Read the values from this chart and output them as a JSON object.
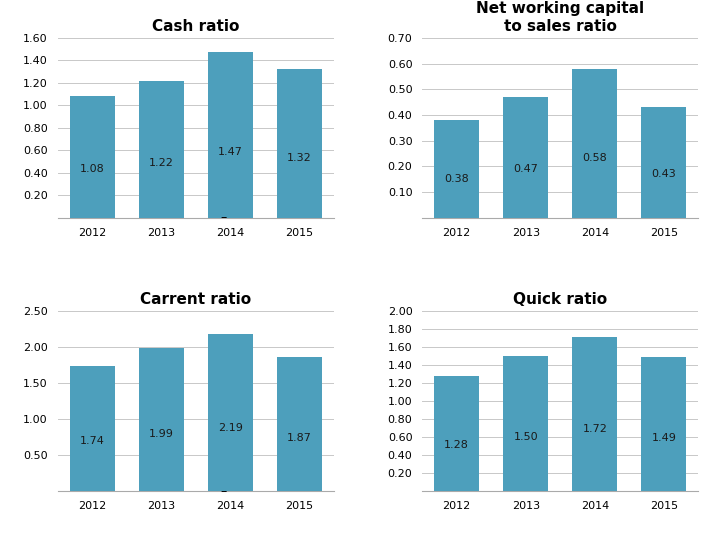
{
  "charts": [
    {
      "title": "Cash ratio",
      "row": 0,
      "col": 0,
      "years": [
        "2012",
        "2013",
        "2014",
        "2015"
      ],
      "values": [
        1.08,
        1.22,
        1.47,
        1.32
      ],
      "ylim": [
        0,
        1.6
      ],
      "yticks": [
        0.2,
        0.4,
        0.6,
        0.8,
        1.0,
        1.2,
        1.4,
        1.6
      ],
      "ytick_labels": [
        "0.20",
        "0.40",
        "0.60",
        "0.80",
        "1.00",
        "1.20",
        "1.40",
        "1.60"
      ]
    },
    {
      "title": "Net working capital\nto sales ratio",
      "row": 0,
      "col": 1,
      "years": [
        "2012",
        "2013",
        "2014",
        "2015"
      ],
      "values": [
        0.38,
        0.47,
        0.58,
        0.43
      ],
      "ylim": [
        0,
        0.7
      ],
      "yticks": [
        0.1,
        0.2,
        0.3,
        0.4,
        0.5,
        0.6,
        0.7
      ],
      "ytick_labels": [
        "0.10",
        "0.20",
        "0.30",
        "0.40",
        "0.50",
        "0.60",
        "0.70"
      ]
    },
    {
      "title": "Carrent ratio",
      "row": 1,
      "col": 0,
      "years": [
        "2012",
        "2013",
        "2014",
        "2015"
      ],
      "values": [
        1.74,
        1.99,
        2.19,
        1.87
      ],
      "ylim": [
        0,
        2.5
      ],
      "yticks": [
        0.5,
        1.0,
        1.5,
        2.0,
        2.5
      ],
      "ytick_labels": [
        "0.50",
        "1.00",
        "1.50",
        "2.00",
        "2.50"
      ]
    },
    {
      "title": "Quick ratio",
      "row": 1,
      "col": 1,
      "years": [
        "2012",
        "2013",
        "2014",
        "2015"
      ],
      "values": [
        1.28,
        1.5,
        1.72,
        1.49
      ],
      "ylim": [
        0,
        2.0
      ],
      "yticks": [
        0.2,
        0.4,
        0.6,
        0.8,
        1.0,
        1.2,
        1.4,
        1.6,
        1.8,
        2.0
      ],
      "ytick_labels": [
        "0.20",
        "0.40",
        "0.60",
        "0.80",
        "1.00",
        "1.20",
        "1.40",
        "1.60",
        "1.80",
        "2.00"
      ]
    }
  ],
  "bar_color": "#4d9fbc",
  "label_fontsize": 8,
  "title_fontsize": 11,
  "tick_fontsize": 8,
  "background_color": "#ffffff",
  "grid_color": "#c8c8c8",
  "label_color": "#1a1a1a"
}
